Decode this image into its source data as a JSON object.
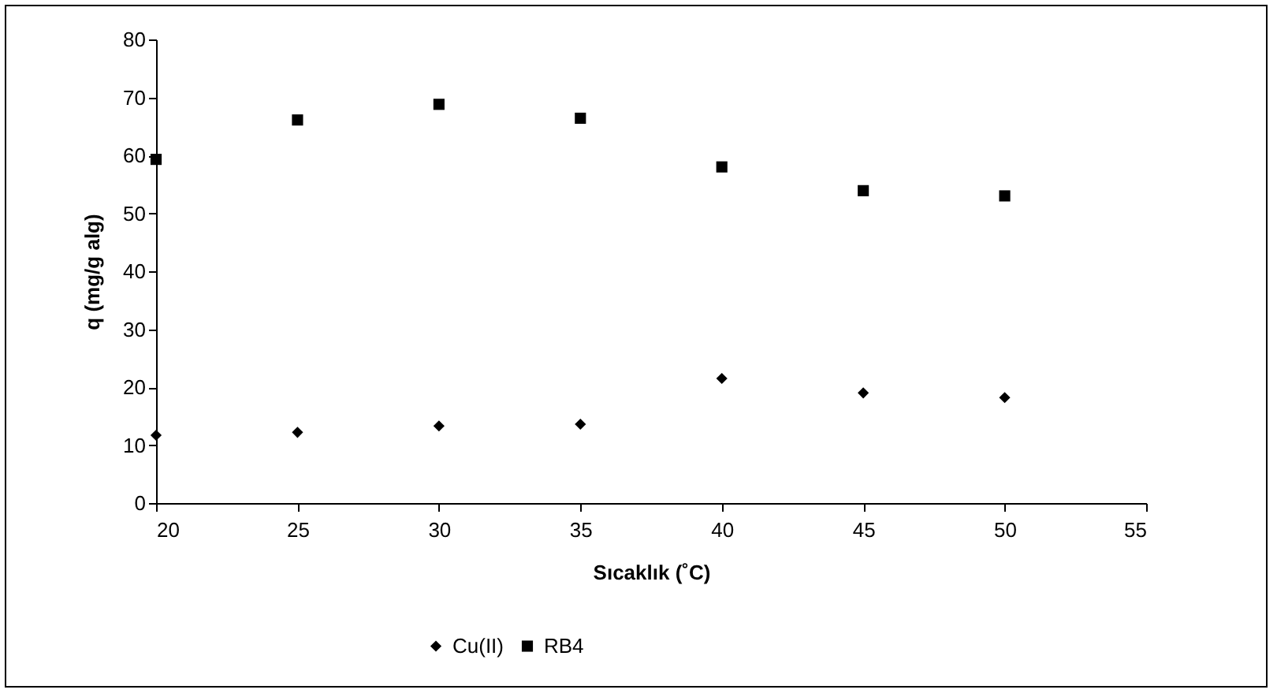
{
  "chart_data": {
    "type": "scatter",
    "xlabel": "Sıcaklık (˚C)",
    "ylabel": "q (mg/g alg)",
    "x": [
      20,
      25,
      30,
      35,
      40,
      45,
      50
    ],
    "series": [
      {
        "name": "Cu(II)",
        "color": "#000000",
        "marker": "diamond",
        "values": [
          11.7,
          12.2,
          13.3,
          13.6,
          21.5,
          19,
          18.2
        ]
      },
      {
        "name": "RB4",
        "color": "#000000",
        "marker": "square",
        "values": [
          59.3,
          66.1,
          68.8,
          66.4,
          58,
          53.9,
          53
        ]
      }
    ],
    "xlim": [
      20,
      55
    ],
    "xticks": [
      20,
      25,
      30,
      35,
      40,
      45,
      50,
      55
    ],
    "ylim": [
      0,
      80
    ],
    "yticks": [
      0,
      10,
      20,
      30,
      40,
      50,
      60,
      70,
      80
    ],
    "grid": false,
    "legend": "bottom"
  }
}
